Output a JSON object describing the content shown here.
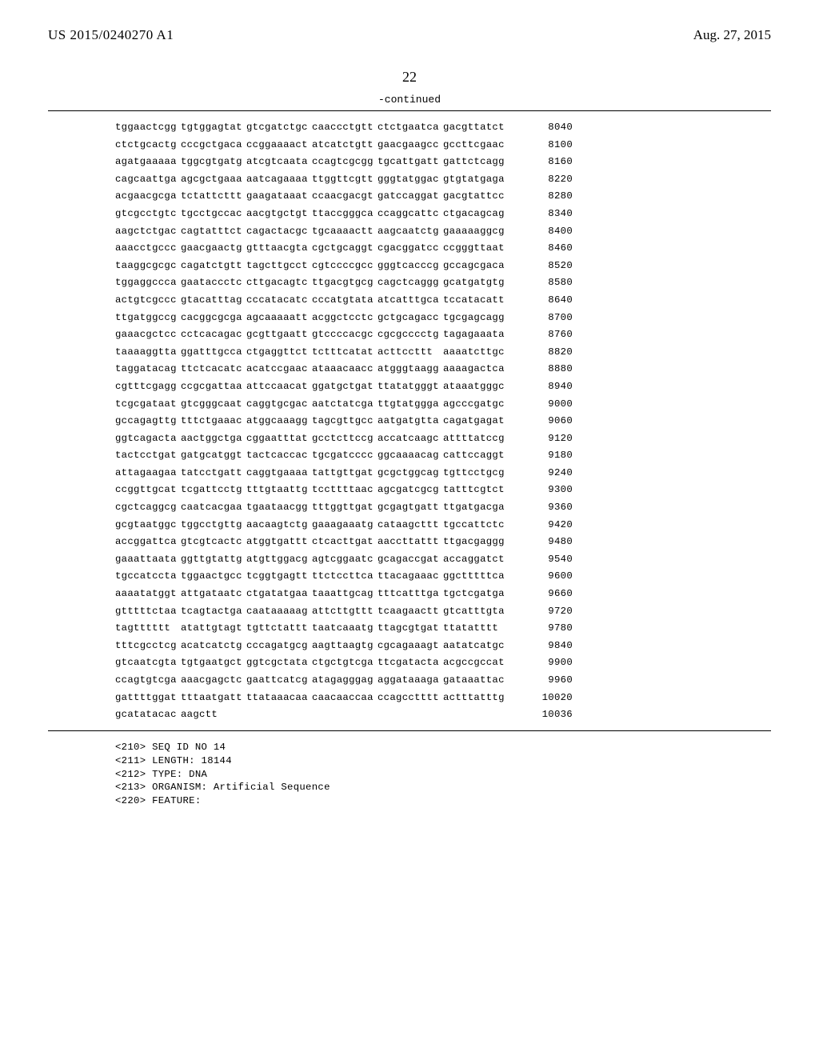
{
  "header": {
    "publication_number": "US 2015/0240270 A1",
    "publication_date": "Aug. 27, 2015"
  },
  "page_number": "22",
  "continued_label": "-continued",
  "sequence": {
    "rows": [
      {
        "blocks": [
          "tggaactcgg",
          "tgtggagtat",
          "gtcgatctgc",
          "caaccctgtt",
          "ctctgaatca",
          "gacgttatct"
        ],
        "pos": "8040"
      },
      {
        "blocks": [
          "ctctgcactg",
          "cccgctgaca",
          "ccggaaaact",
          "atcatctgtt",
          "gaacgaagcc",
          "gccttcgaac"
        ],
        "pos": "8100"
      },
      {
        "blocks": [
          "agatgaaaaa",
          "tggcgtgatg",
          "atcgtcaata",
          "ccagtcgcgg",
          "tgcattgatt",
          "gattctcagg"
        ],
        "pos": "8160"
      },
      {
        "blocks": [
          "cagcaattga",
          "agcgctgaaa",
          "aatcagaaaa",
          "ttggttcgtt",
          "gggtatggac",
          "gtgtatgaga"
        ],
        "pos": "8220"
      },
      {
        "blocks": [
          "acgaacgcga",
          "tctattcttt",
          "gaagataaat",
          "ccaacgacgt",
          "gatccaggat",
          "gacgtattcc"
        ],
        "pos": "8280"
      },
      {
        "blocks": [
          "gtcgcctgtc",
          "tgcctgccac",
          "aacgtgctgt",
          "ttaccgggca",
          "ccaggcattc",
          "ctgacagcag"
        ],
        "pos": "8340"
      },
      {
        "blocks": [
          "aagctctgac",
          "cagtatttct",
          "cagactacgc",
          "tgcaaaactt",
          "aagcaatctg",
          "gaaaaaggcg"
        ],
        "pos": "8400"
      },
      {
        "blocks": [
          "aaacctgccc",
          "gaacgaactg",
          "gtttaacgta",
          "cgctgcaggt",
          "cgacggatcc",
          "ccgggttaat"
        ],
        "pos": "8460"
      },
      {
        "blocks": [
          "taaggcgcgc",
          "cagatctgtt",
          "tagcttgcct",
          "cgtccccgcc",
          "gggtcacccg",
          "gccagcgaca"
        ],
        "pos": "8520"
      },
      {
        "blocks": [
          "tggaggccca",
          "gaataccctc",
          "cttgacagtc",
          "ttgacgtgcg",
          "cagctcaggg",
          "gcatgatgtg"
        ],
        "pos": "8580"
      },
      {
        "blocks": [
          "actgtcgccc",
          "gtacatttag",
          "cccatacatc",
          "cccatgtata",
          "atcatttgca",
          "tccatacatt"
        ],
        "pos": "8640"
      },
      {
        "blocks": [
          "ttgatggccg",
          "cacggcgcga",
          "agcaaaaatt",
          "acggctcctc",
          "gctgcagacc",
          "tgcgagcagg"
        ],
        "pos": "8700"
      },
      {
        "blocks": [
          "gaaacgctcc",
          "cctcacagac",
          "gcgttgaatt",
          "gtccccacgc",
          "cgcgcccctg",
          "tagagaaata"
        ],
        "pos": "8760"
      },
      {
        "blocks": [
          "taaaaggtta",
          "ggatttgcca",
          "ctgaggttct",
          "tctttcatat",
          "acttccttt",
          "aaaatcttgc"
        ],
        "pos": "8820"
      },
      {
        "blocks": [
          "taggatacag",
          "ttctcacatc",
          "acatccgaac",
          "ataaacaacc",
          "atgggtaagg",
          "aaaagactca"
        ],
        "pos": "8880"
      },
      {
        "blocks": [
          "cgtttcgagg",
          "ccgcgattaa",
          "attccaacat",
          "ggatgctgat",
          "ttatatgggt",
          "ataaatgggc"
        ],
        "pos": "8940"
      },
      {
        "blocks": [
          "tcgcgataat",
          "gtcgggcaat",
          "caggtgcgac",
          "aatctatcga",
          "ttgtatggga",
          "agcccgatgc"
        ],
        "pos": "9000"
      },
      {
        "blocks": [
          "gccagagttg",
          "tttctgaaac",
          "atggcaaagg",
          "tagcgttgcc",
          "aatgatgtta",
          "cagatgagat"
        ],
        "pos": "9060"
      },
      {
        "blocks": [
          "ggtcagacta",
          "aactggctga",
          "cggaatttat",
          "gcctcttccg",
          "accatcaagc",
          "attttatccg"
        ],
        "pos": "9120"
      },
      {
        "blocks": [
          "tactcctgat",
          "gatgcatggt",
          "tactcaccac",
          "tgcgatcccc",
          "ggcaaaacag",
          "cattccaggt"
        ],
        "pos": "9180"
      },
      {
        "blocks": [
          "attagaagaa",
          "tatcctgatt",
          "caggtgaaaa",
          "tattgttgat",
          "gcgctggcag",
          "tgttcctgcg"
        ],
        "pos": "9240"
      },
      {
        "blocks": [
          "ccggttgcat",
          "tcgattcctg",
          "tttgtaattg",
          "tccttttaac",
          "agcgatcgcg",
          "tatttcgtct"
        ],
        "pos": "9300"
      },
      {
        "blocks": [
          "cgctcaggcg",
          "caatcacgaa",
          "tgaataacgg",
          "tttggttgat",
          "gcgagtgatt",
          "ttgatgacga"
        ],
        "pos": "9360"
      },
      {
        "blocks": [
          "gcgtaatggc",
          "tggcctgttg",
          "aacaagtctg",
          "gaaagaaatg",
          "cataagcttt",
          "tgccattctc"
        ],
        "pos": "9420"
      },
      {
        "blocks": [
          "accggattca",
          "gtcgtcactc",
          "atggtgattt",
          "ctcacttgat",
          "aaccttattt",
          "ttgacgaggg"
        ],
        "pos": "9480"
      },
      {
        "blocks": [
          "gaaattaata",
          "ggttgtattg",
          "atgttggacg",
          "agtcggaatc",
          "gcagaccgat",
          "accaggatct"
        ],
        "pos": "9540"
      },
      {
        "blocks": [
          "tgccatccta",
          "tggaactgcc",
          "tcggtgagtt",
          "ttctccttca",
          "ttacagaaac",
          "ggctttttca"
        ],
        "pos": "9600"
      },
      {
        "blocks": [
          "aaaatatggt",
          "attgataatc",
          "ctgatatgaa",
          "taaattgcag",
          "tttcatttga",
          "tgctcgatga"
        ],
        "pos": "9660"
      },
      {
        "blocks": [
          "gtttttctaa",
          "tcagtactga",
          "caataaaaag",
          "attcttgttt",
          "tcaagaactt",
          "gtcatttgta"
        ],
        "pos": "9720"
      },
      {
        "blocks": [
          "tagtttttt",
          "atattgtagt",
          "tgttctattt",
          "taatcaaatg",
          "ttagcgtgat",
          "ttatatttt"
        ],
        "pos": "9780"
      },
      {
        "blocks": [
          "tttcgcctcg",
          "acatcatctg",
          "cccagatgcg",
          "aagttaagtg",
          "cgcagaaagt",
          "aatatcatgc"
        ],
        "pos": "9840"
      },
      {
        "blocks": [
          "gtcaatcgta",
          "tgtgaatgct",
          "ggtcgctata",
          "ctgctgtcga",
          "ttcgatacta",
          "acgccgccat"
        ],
        "pos": "9900"
      },
      {
        "blocks": [
          "ccagtgtcga",
          "aaacgagctc",
          "gaattcatcg",
          "atagagggag",
          "aggataaaga",
          "gataaattac"
        ],
        "pos": "9960"
      },
      {
        "blocks": [
          "gattttggat",
          "tttaatgatt",
          "ttataaacaa",
          "caacaaccaa",
          "ccagcctttt",
          "actttatttg"
        ],
        "pos": "10020"
      },
      {
        "blocks": [
          "gcatatacac",
          "aagctt",
          "",
          "",
          "",
          ""
        ],
        "pos": "10036"
      }
    ]
  },
  "metadata": [
    "<210> SEQ ID NO 14",
    "<211> LENGTH: 18144",
    "<212> TYPE: DNA",
    "<213> ORGANISM: Artificial Sequence",
    "<220> FEATURE:"
  ]
}
